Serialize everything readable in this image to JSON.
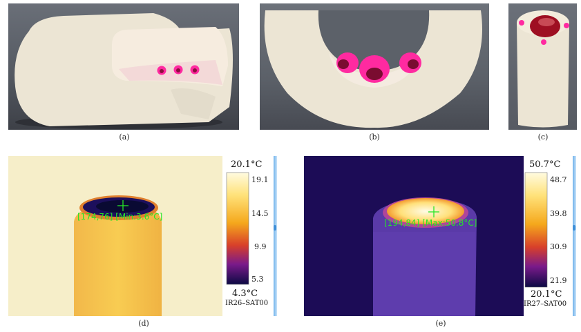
{
  "panels": {
    "a": {
      "caption": "(a)"
    },
    "b": {
      "caption": "(b)"
    },
    "c": {
      "caption": "(c)"
    },
    "d": {
      "caption": "(d)",
      "readout": "[174,76] [Min:3.6°C]",
      "scale_max": "20.1°C",
      "scale_min": "4.3°C",
      "ticks": [
        "19.1",
        "14.5",
        "9.9",
        "5.3"
      ],
      "tag": "IR26–SAT00"
    },
    "e": {
      "caption": "(e)",
      "readout": "[194,84] [Max:50.8°C]",
      "scale_max": "50.7°C",
      "scale_min": "20.1°C",
      "ticks": [
        "48.7",
        "39.8",
        "30.9",
        "21.9"
      ],
      "tag": "IR27–SAT00"
    }
  },
  "colors": {
    "foam": "#ece5d4",
    "hot_pink": "#ff2aa0",
    "readout_green": "#26e626",
    "scale_edge": "#6fb2ea"
  }
}
